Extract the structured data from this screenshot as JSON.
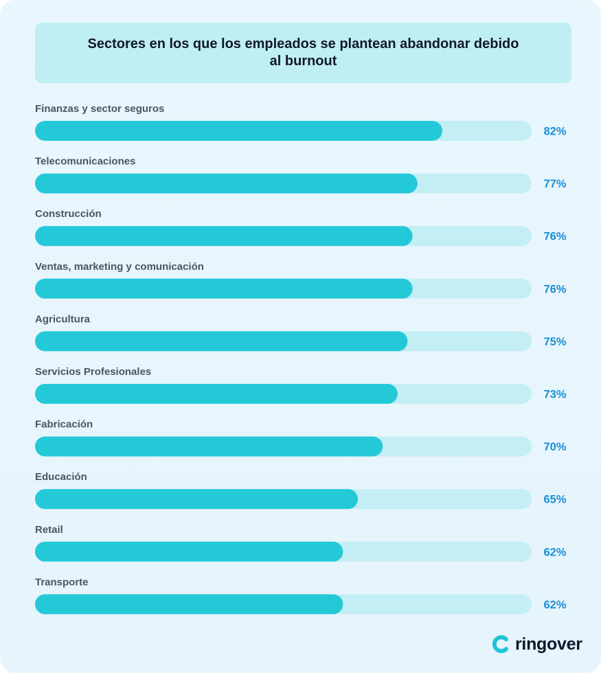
{
  "colors": {
    "background": "#e8f5fc",
    "title_box": "#bfeef3",
    "bar_fill": "#24c9d8",
    "bar_track": "#c3eef4",
    "label_text": "#4b5563",
    "value_text": "#1a8fd6"
  },
  "chart_data": {
    "type": "bar",
    "orientation": "horizontal",
    "title": "Sectores en los que los empleados se plantean abandonar debido al burnout",
    "categories": [
      "Finanzas y sector seguros",
      "Telecomunicaciones",
      "Construcción",
      "Ventas, marketing y comunicación",
      "Agricultura",
      "Servicios Profesionales",
      "Fabricación",
      "Educación",
      "Retail",
      "Transporte"
    ],
    "values": [
      82,
      77,
      76,
      76,
      75,
      73,
      70,
      65,
      62,
      62
    ],
    "value_labels": [
      "82%",
      "77%",
      "76%",
      "76%",
      "75%",
      "73%",
      "70%",
      "65%",
      "62%",
      "62%"
    ],
    "xlim": [
      0,
      100
    ],
    "grid": false,
    "legend": "none"
  },
  "brand": {
    "logo_text": "ringover",
    "icon": "ringover-logo-icon"
  }
}
